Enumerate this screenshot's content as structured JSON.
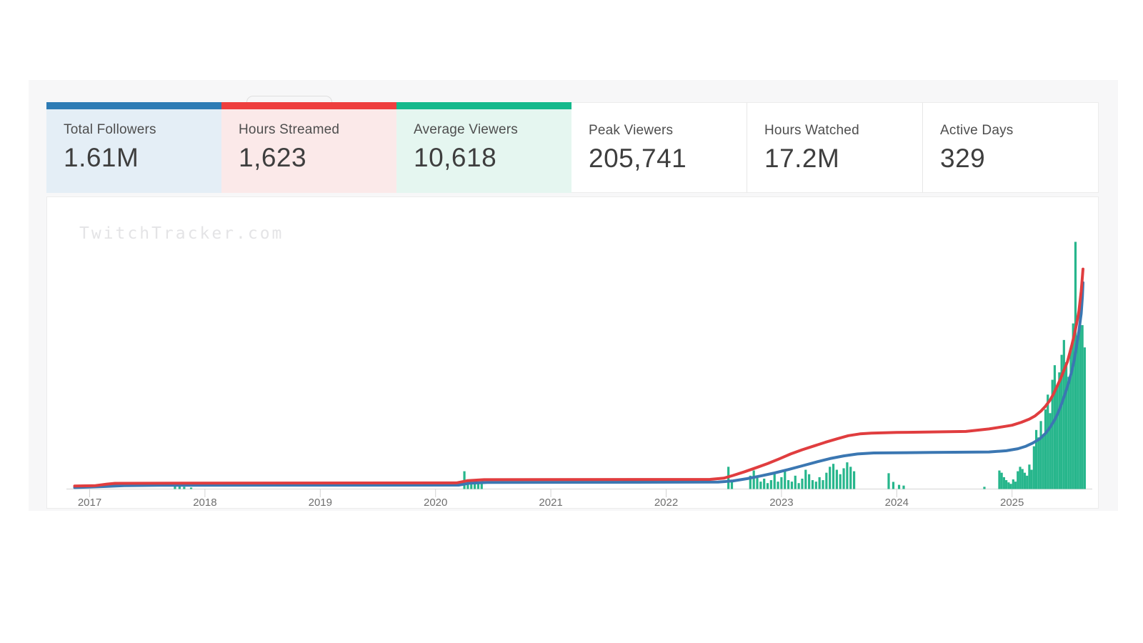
{
  "page": {
    "watermark": "TwitchTracker.com"
  },
  "colors": {
    "backdrop": "#f7f7f8",
    "axis_line": "#dcdcdc",
    "axis_tick": "#d3d3d3",
    "axis_label": "#6f6f6f"
  },
  "stats": [
    {
      "label": "Total Followers",
      "value": "1.61M",
      "accent": "#2e7cb5",
      "tint": "#e4eef6"
    },
    {
      "label": "Hours Streamed",
      "value": "1,623",
      "accent": "#ee3e3e",
      "tint": "#fbe9e9"
    },
    {
      "label": "Average Viewers",
      "value": "10,618",
      "accent": "#14b98c",
      "tint": "#e5f6f0"
    },
    {
      "label": "Peak Viewers",
      "value": "205,741",
      "accent": null,
      "tint": "#ffffff"
    },
    {
      "label": "Hours Watched",
      "value": "17.2M",
      "accent": null,
      "tint": "#ffffff"
    },
    {
      "label": "Active Days",
      "value": "329",
      "accent": null,
      "tint": "#ffffff"
    }
  ],
  "chart_data": {
    "type": "line+bar",
    "title": "",
    "xlabel": "",
    "ylabel": "",
    "x_ticks": [
      2017,
      2018,
      2019,
      2020,
      2021,
      2022,
      2023,
      2024,
      2025
    ],
    "x_range": [
      2016.8,
      2025.7
    ],
    "y_scale": "relative units, 0 = axis baseline, 100 = plot top (no visible y axis)",
    "grid": "none",
    "legend": "none",
    "series": [
      {
        "name": "green-bars",
        "type": "bar",
        "color": "#27b68c",
        "points": [
          [
            2017.74,
            1.2
          ],
          [
            2017.78,
            1.7
          ],
          [
            2017.82,
            0.9
          ],
          [
            2017.88,
            0.6
          ],
          [
            2020.25,
            7.2
          ],
          [
            2020.28,
            3.5
          ],
          [
            2020.31,
            2.9
          ],
          [
            2020.34,
            2.9
          ],
          [
            2020.37,
            2.9
          ],
          [
            2020.4,
            2.6
          ],
          [
            2022.54,
            9.0
          ],
          [
            2022.57,
            3.6
          ],
          [
            2022.73,
            5.4
          ],
          [
            2022.76,
            7.5
          ],
          [
            2022.79,
            4.5
          ],
          [
            2022.82,
            3.0
          ],
          [
            2022.85,
            4.2
          ],
          [
            2022.88,
            2.4
          ],
          [
            2022.91,
            3.6
          ],
          [
            2022.94,
            6.0
          ],
          [
            2022.97,
            3.0
          ],
          [
            2023.0,
            4.8
          ],
          [
            2023.03,
            7.2
          ],
          [
            2023.06,
            3.6
          ],
          [
            2023.09,
            3.0
          ],
          [
            2023.12,
            5.4
          ],
          [
            2023.15,
            2.4
          ],
          [
            2023.18,
            4.2
          ],
          [
            2023.21,
            7.8
          ],
          [
            2023.24,
            6.0
          ],
          [
            2023.27,
            3.6
          ],
          [
            2023.3,
            3.0
          ],
          [
            2023.33,
            4.8
          ],
          [
            2023.36,
            3.6
          ],
          [
            2023.39,
            6.6
          ],
          [
            2023.42,
            9.0
          ],
          [
            2023.45,
            10.2
          ],
          [
            2023.48,
            7.8
          ],
          [
            2023.51,
            6.0
          ],
          [
            2023.54,
            8.4
          ],
          [
            2023.57,
            10.8
          ],
          [
            2023.6,
            9.0
          ],
          [
            2023.63,
            7.2
          ],
          [
            2023.93,
            6.4
          ],
          [
            2023.97,
            2.9
          ],
          [
            2024.02,
            1.7
          ],
          [
            2024.06,
            1.4
          ],
          [
            2024.76,
            0.9
          ],
          [
            2024.89,
            7.5
          ],
          [
            2024.91,
            6.6
          ],
          [
            2024.93,
            4.8
          ],
          [
            2024.95,
            3.6
          ],
          [
            2024.97,
            2.7
          ],
          [
            2024.99,
            2.1
          ],
          [
            2025.01,
            3.9
          ],
          [
            2025.03,
            3.0
          ],
          [
            2025.05,
            7.2
          ],
          [
            2025.07,
            9.0
          ],
          [
            2025.09,
            8.1
          ],
          [
            2025.11,
            6.6
          ],
          [
            2025.13,
            5.4
          ],
          [
            2025.15,
            9.9
          ],
          [
            2025.17,
            7.8
          ],
          [
            2025.19,
            17.3
          ],
          [
            2025.21,
            23.9
          ],
          [
            2025.23,
            20.9
          ],
          [
            2025.25,
            27.5
          ],
          [
            2025.27,
            22.1
          ],
          [
            2025.29,
            32.2
          ],
          [
            2025.31,
            38.2
          ],
          [
            2025.33,
            30.7
          ],
          [
            2025.35,
            44.2
          ],
          [
            2025.37,
            50.1
          ],
          [
            2025.39,
            41.2
          ],
          [
            2025.41,
            47.2
          ],
          [
            2025.43,
            54.3
          ],
          [
            2025.45,
            60.3
          ],
          [
            2025.47,
            51.3
          ],
          [
            2025.49,
            45.4
          ],
          [
            2025.51,
            56.1
          ],
          [
            2025.53,
            67.0
          ],
          [
            2025.55,
            100.0
          ],
          [
            2025.57,
            62.1
          ],
          [
            2025.59,
            71.0
          ],
          [
            2025.61,
            66.3
          ],
          [
            2025.63,
            57.3
          ]
        ]
      },
      {
        "name": "blue-line",
        "type": "line",
        "color": "#3b77b2",
        "points": [
          [
            2016.87,
            0.6
          ],
          [
            2017.12,
            1.0
          ],
          [
            2017.3,
            1.4
          ],
          [
            2017.6,
            1.5
          ],
          [
            2020.2,
            1.6
          ],
          [
            2020.3,
            2.4
          ],
          [
            2020.45,
            2.7
          ],
          [
            2022.45,
            2.8
          ],
          [
            2022.58,
            3.3
          ],
          [
            2022.7,
            4.2
          ],
          [
            2022.82,
            5.3
          ],
          [
            2022.94,
            6.5
          ],
          [
            2023.06,
            7.9
          ],
          [
            2023.18,
            9.4
          ],
          [
            2023.3,
            10.9
          ],
          [
            2023.42,
            12.3
          ],
          [
            2023.54,
            13.4
          ],
          [
            2023.66,
            14.2
          ],
          [
            2023.8,
            14.6
          ],
          [
            2024.3,
            14.8
          ],
          [
            2024.8,
            15.0
          ],
          [
            2024.95,
            15.5
          ],
          [
            2025.05,
            16.3
          ],
          [
            2025.12,
            17.3
          ],
          [
            2025.18,
            18.6
          ],
          [
            2025.24,
            20.3
          ],
          [
            2025.29,
            22.5
          ],
          [
            2025.33,
            25.0
          ],
          [
            2025.37,
            28.0
          ],
          [
            2025.4,
            31.0
          ],
          [
            2025.43,
            34.5
          ],
          [
            2025.46,
            38.5
          ],
          [
            2025.49,
            43.0
          ],
          [
            2025.52,
            48.0
          ],
          [
            2025.54,
            52.5
          ],
          [
            2025.56,
            58.0
          ],
          [
            2025.58,
            64.0
          ],
          [
            2025.6,
            71.0
          ],
          [
            2025.61,
            78.0
          ],
          [
            2025.615,
            83.5
          ]
        ]
      },
      {
        "name": "red-line",
        "type": "line",
        "color": "#e03d3f",
        "points": [
          [
            2016.87,
            1.2
          ],
          [
            2017.05,
            1.4
          ],
          [
            2017.15,
            2.0
          ],
          [
            2017.22,
            2.3
          ],
          [
            2017.8,
            2.4
          ],
          [
            2020.18,
            2.5
          ],
          [
            2020.28,
            3.4
          ],
          [
            2020.42,
            3.8
          ],
          [
            2022.38,
            3.9
          ],
          [
            2022.5,
            4.4
          ],
          [
            2022.58,
            5.5
          ],
          [
            2022.68,
            7.0
          ],
          [
            2022.78,
            8.6
          ],
          [
            2022.88,
            10.3
          ],
          [
            2022.98,
            12.2
          ],
          [
            2023.08,
            14.2
          ],
          [
            2023.18,
            15.9
          ],
          [
            2023.28,
            17.4
          ],
          [
            2023.38,
            18.9
          ],
          [
            2023.48,
            20.3
          ],
          [
            2023.58,
            21.6
          ],
          [
            2023.68,
            22.3
          ],
          [
            2023.78,
            22.6
          ],
          [
            2024.0,
            22.9
          ],
          [
            2024.3,
            23.1
          ],
          [
            2024.6,
            23.3
          ],
          [
            2024.8,
            24.3
          ],
          [
            2024.92,
            25.2
          ],
          [
            2025.0,
            25.8
          ],
          [
            2025.08,
            27.0
          ],
          [
            2025.15,
            28.3
          ],
          [
            2025.2,
            29.6
          ],
          [
            2025.25,
            31.5
          ],
          [
            2025.29,
            33.5
          ],
          [
            2025.33,
            36.0
          ],
          [
            2025.36,
            38.5
          ],
          [
            2025.39,
            41.5
          ],
          [
            2025.42,
            44.5
          ],
          [
            2025.45,
            48.0
          ],
          [
            2025.48,
            51.5
          ],
          [
            2025.5,
            55.0
          ],
          [
            2025.52,
            58.5
          ],
          [
            2025.54,
            62.5
          ],
          [
            2025.56,
            67.0
          ],
          [
            2025.58,
            72.0
          ],
          [
            2025.59,
            76.0
          ],
          [
            2025.6,
            80.0
          ],
          [
            2025.61,
            86.0
          ],
          [
            2025.615,
            89.0
          ]
        ]
      }
    ]
  }
}
